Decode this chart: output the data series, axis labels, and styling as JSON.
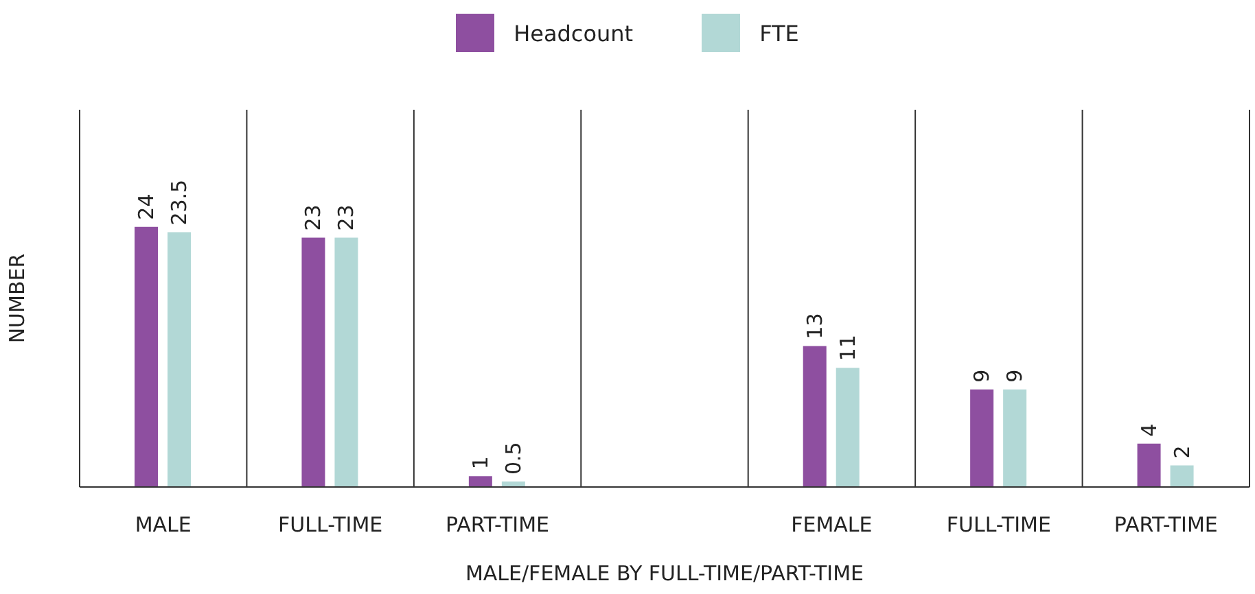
{
  "chart_data": {
    "type": "bar",
    "xlabel": "MALE/FEMALE BY FULL-TIME/PART-TIME",
    "ylabel": "NUMBER",
    "categories": [
      "MALE",
      "FULL-TIME",
      "PART-TIME",
      null,
      "FEMALE",
      "FULL-TIME",
      "PART-TIME"
    ],
    "series": [
      {
        "name": "Headcount",
        "color": "#8e4fa0",
        "values": [
          24,
          23,
          1,
          null,
          13,
          9,
          4
        ]
      },
      {
        "name": "FTE",
        "color": "#b2d8d6",
        "values": [
          23.5,
          23,
          0.5,
          null,
          11,
          9,
          2
        ]
      }
    ],
    "data_labels": true,
    "grid": "x",
    "legend": "top"
  }
}
